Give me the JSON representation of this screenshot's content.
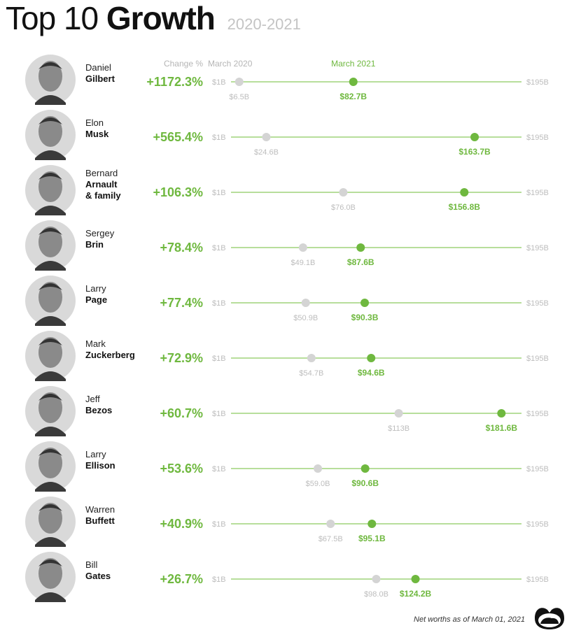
{
  "chart_data": {
    "type": "dumbbell",
    "title": {
      "part1": "Top 10",
      "part2": "Growth",
      "period": "2020-2021"
    },
    "headers": {
      "change": "Change %",
      "start": "March 2020",
      "end": "March 2021"
    },
    "axis": {
      "min": 1,
      "max": 195,
      "min_label": "$1B",
      "max_label": "$195B"
    },
    "colors": {
      "accent": "#6fb83f",
      "start_dot": "#d4d4d4",
      "start_label": "#bdbdbd",
      "line": "#8cc95f"
    },
    "rows": [
      {
        "first": "Daniel",
        "last": "Gilbert",
        "change": "+1172.3%",
        "v2020": 6.5,
        "l2020": "$6.5B",
        "v2021": 82.7,
        "l2021": "$82.7B"
      },
      {
        "first": "Elon",
        "last": "Musk",
        "change": "+565.4%",
        "v2020": 24.6,
        "l2020": "$24.6B",
        "v2021": 163.7,
        "l2021": "$163.7B"
      },
      {
        "first": "Bernard",
        "last": "Arnault",
        "last2": "& family",
        "change": "+106.3%",
        "v2020": 76.0,
        "l2020": "$76.0B",
        "v2021": 156.8,
        "l2021": "$156.8B"
      },
      {
        "first": "Sergey",
        "last": "Brin",
        "change": "+78.4%",
        "v2020": 49.1,
        "l2020": "$49.1B",
        "v2021": 87.6,
        "l2021": "$87.6B"
      },
      {
        "first": "Larry",
        "last": "Page",
        "change": "+77.4%",
        "v2020": 50.9,
        "l2020": "$50.9B",
        "v2021": 90.3,
        "l2021": "$90.3B"
      },
      {
        "first": "Mark",
        "last": "Zuckerberg",
        "change": "+72.9%",
        "v2020": 54.7,
        "l2020": "$54.7B",
        "v2021": 94.6,
        "l2021": "$94.6B"
      },
      {
        "first": "Jeff",
        "last": "Bezos",
        "change": "+60.7%",
        "v2020": 113,
        "l2020": "$113B",
        "v2021": 181.6,
        "l2021": "$181.6B"
      },
      {
        "first": "Larry",
        "last": "Ellison",
        "change": "+53.6%",
        "v2020": 59.0,
        "l2020": "$59.0B",
        "v2021": 90.6,
        "l2021": "$90.6B"
      },
      {
        "first": "Warren",
        "last": "Buffett",
        "change": "+40.9%",
        "v2020": 67.5,
        "l2020": "$67.5B",
        "v2021": 95.1,
        "l2021": "$95.1B"
      },
      {
        "first": "Bill",
        "last": "Gates",
        "change": "+26.7%",
        "v2020": 98.0,
        "l2020": "$98.0B",
        "v2021": 124.2,
        "l2021": "$124.2B"
      }
    ]
  },
  "footnote": "Net worths as of March 01, 2021",
  "logo_icon": "binoculars-logo-icon"
}
